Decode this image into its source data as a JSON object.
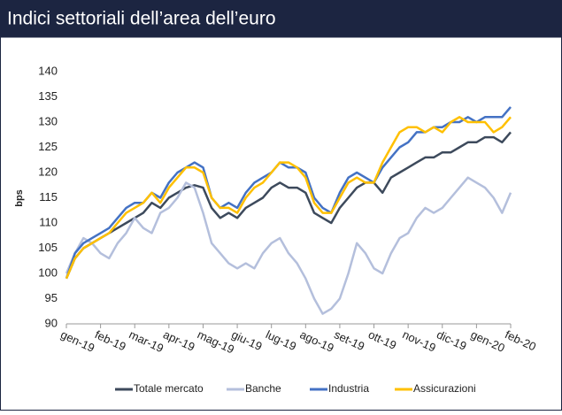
{
  "header": {
    "title": "Indici settoriali dell’area dell’euro"
  },
  "chart_data": {
    "type": "line",
    "ylabel": "bps",
    "categories": [
      "gen-19",
      null,
      null,
      null,
      "feb-19",
      null,
      null,
      null,
      "mar-19",
      null,
      null,
      null,
      "apr-19",
      null,
      null,
      null,
      "mag-19",
      null,
      null,
      null,
      "giu-19",
      null,
      null,
      null,
      "lug-19",
      null,
      null,
      null,
      "ago-19",
      null,
      null,
      null,
      "set-19",
      null,
      null,
      null,
      "ott-19",
      null,
      null,
      null,
      "nov-19",
      null,
      null,
      null,
      "dic-19",
      null,
      null,
      null,
      "gen-20",
      null,
      null,
      null,
      "feb-20"
    ],
    "ylim": [
      90,
      140
    ],
    "yticks": [
      90,
      95,
      100,
      105,
      110,
      115,
      120,
      125,
      130,
      135,
      140
    ],
    "legend": "bottom",
    "series": [
      {
        "name": "Totale mercato",
        "color": "#3d4a5c",
        "values": [
          99,
          103,
          105,
          106,
          107,
          108,
          109,
          110,
          111,
          112,
          114,
          113,
          115,
          116,
          117,
          117.5,
          117,
          113,
          111,
          112,
          111,
          113,
          114,
          115,
          117,
          118,
          117,
          117,
          116,
          112,
          111,
          110,
          113,
          115,
          117,
          118,
          118,
          116,
          119,
          120,
          121,
          122,
          123,
          123,
          124,
          124,
          125,
          126,
          126,
          127,
          127,
          126,
          128
        ]
      },
      {
        "name": "Banche",
        "color": "#b4bfdc",
        "values": [
          100,
          104,
          107,
          106,
          104,
          103,
          106,
          108,
          111,
          109,
          108,
          112,
          113,
          115,
          118,
          117,
          112,
          106,
          104,
          102,
          101,
          102,
          101,
          104,
          106,
          107,
          104,
          102,
          99,
          95,
          92,
          93,
          95,
          100,
          106,
          104,
          101,
          100,
          104,
          107,
          108,
          111,
          113,
          112,
          113,
          115,
          117,
          119,
          118,
          117,
          115,
          112,
          116
        ]
      },
      {
        "name": "Industria",
        "color": "#4472c4",
        "values": [
          99,
          104,
          106,
          107,
          108,
          109,
          111,
          113,
          114,
          114,
          116,
          115,
          118,
          120,
          121,
          122,
          121,
          115,
          113,
          114,
          113,
          116,
          118,
          119,
          120,
          122,
          121,
          121,
          120,
          115,
          113,
          112,
          116,
          119,
          120,
          119,
          118,
          121,
          123,
          125,
          126,
          128,
          128,
          129,
          129,
          130,
          130,
          131,
          130,
          131,
          131,
          131,
          133
        ]
      },
      {
        "name": "Assicurazioni",
        "color": "#ffc000",
        "values": [
          99,
          103,
          105,
          106,
          107,
          108,
          110,
          112,
          113,
          114,
          116,
          114,
          117,
          119,
          121,
          121,
          120,
          115,
          113,
          113,
          112,
          115,
          117,
          118,
          120,
          122,
          122,
          121,
          119,
          114,
          112,
          112,
          115,
          118,
          119,
          118,
          118,
          122,
          125,
          128,
          129,
          129,
          128,
          129,
          128,
          130,
          131,
          130,
          130,
          130,
          128,
          129,
          131
        ]
      }
    ]
  }
}
